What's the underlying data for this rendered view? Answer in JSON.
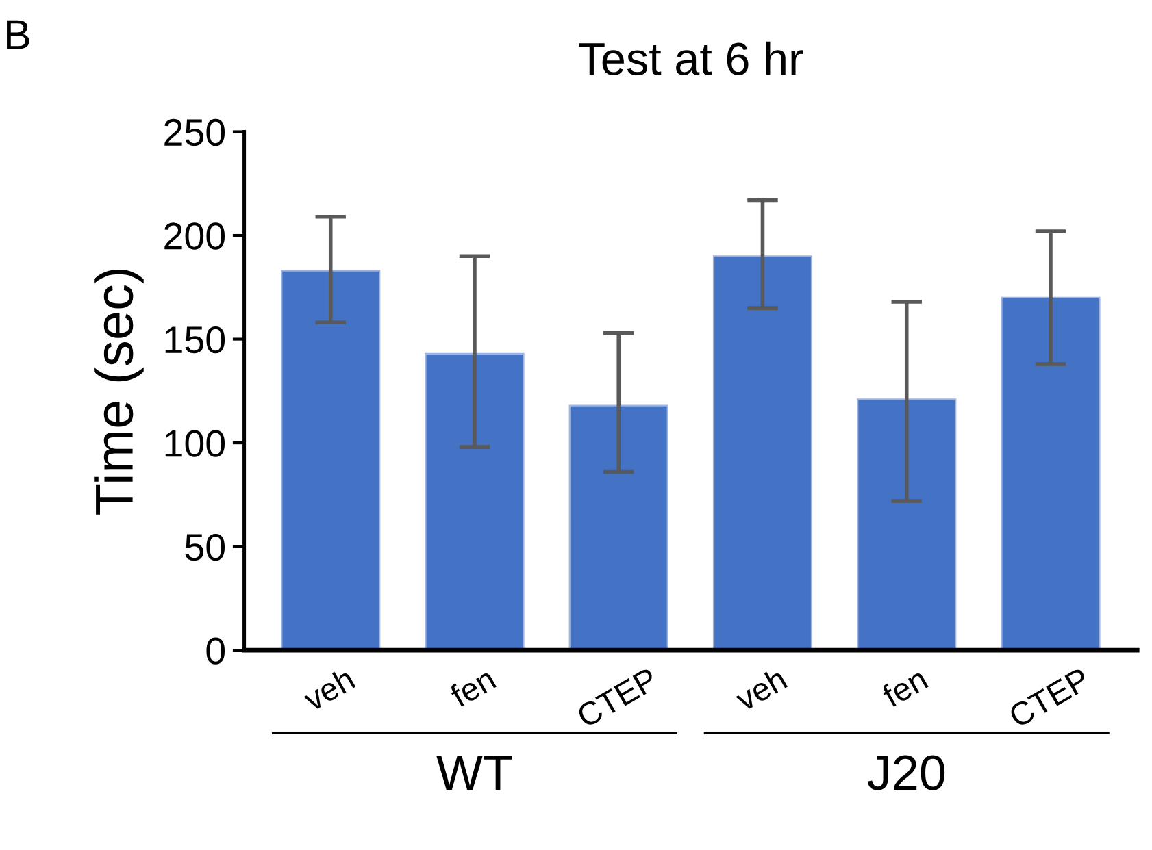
{
  "chart_data": {
    "type": "bar",
    "title": "Test at 6 hr",
    "ylabel": "Time (sec)",
    "categories": [
      "veh",
      "fen",
      "CTEP",
      "veh",
      "fen",
      "CTEP"
    ],
    "values": [
      183,
      143,
      118,
      190,
      121,
      170
    ],
    "errors": [
      [
        158,
        209
      ],
      [
        98,
        190
      ],
      [
        86,
        153
      ],
      [
        165,
        217
      ],
      [
        72,
        168
      ],
      [
        138,
        202
      ]
    ],
    "color": "#4472c4",
    "ylim": [
      0,
      250
    ],
    "yticks": [
      0,
      50,
      100,
      150,
      200,
      250
    ],
    "grid": false,
    "annotations": [
      "B",
      "WT",
      "J20"
    ]
  }
}
